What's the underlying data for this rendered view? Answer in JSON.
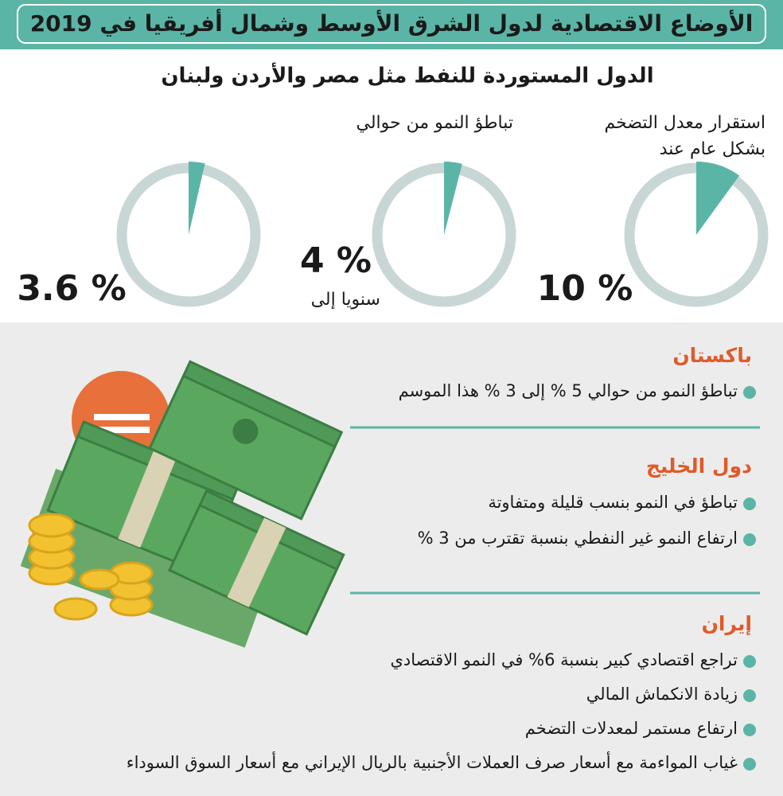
{
  "header": {
    "title": "الأوضاع الاقتصادية لدول الشرق الأوسط وشمال أفريقيا في 2019",
    "subtitle": "الدول المستوردة للنفط مثل مصر والأردن ولبنان"
  },
  "gauges": [
    {
      "caption": [
        "استقرار معدل التضخم",
        "بشكل عام عند"
      ],
      "value": 10,
      "value_label": "10 %"
    },
    {
      "caption": [
        "تباطؤ النمو من حوالي"
      ],
      "value": 4,
      "value_label": "4 %",
      "note": "سنويا إلى"
    },
    {
      "value": 3.6,
      "value_label": "3.6 %"
    }
  ],
  "sections": [
    {
      "heading": "باكستان",
      "items": [
        "تباطؤ النمو من حوالي 5 % إلى 3 % هذا الموسم"
      ]
    },
    {
      "heading": "دول الخليج",
      "items": [
        "تباطؤ في النمو بنسب قليلة ومتفاوتة",
        "ارتفاع النمو غير النفطي بنسبة تقترب من 3 %"
      ]
    },
    {
      "heading": "إيران",
      "items": [
        "تراجع اقتصادي كبير بنسبة 6% في النمو الاقتصادي",
        "زيادة الانكماش المالي",
        "ارتفاع مستمر لمعدلات التضخم",
        "غياب المواءمة مع أسعار صرف العملات الأجنبية بالريال الإيراني مع أسعار السوق السوداء"
      ]
    }
  ]
}
